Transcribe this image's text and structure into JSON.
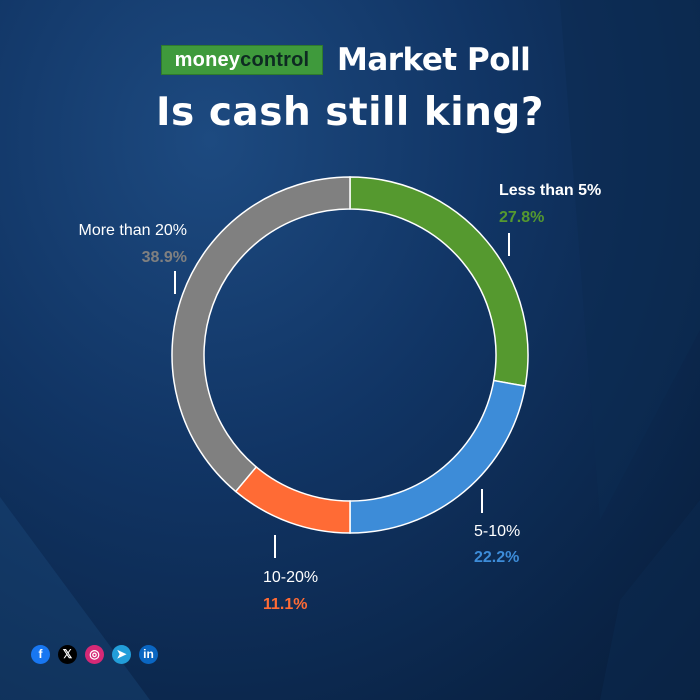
{
  "brand": {
    "logo_part1": "money",
    "logo_part2": "control",
    "poll_label": "Market Poll"
  },
  "title": "Is cash still king?",
  "chart_data": {
    "type": "pie",
    "variant": "donut",
    "title": "Is cash still king?",
    "slices": [
      {
        "label": "Less than 5%",
        "value": 27.8,
        "display": "27.8%",
        "color": "#55992f"
      },
      {
        "label": "5-10%",
        "value": 22.2,
        "display": "22.2%",
        "color": "#3d8cd8"
      },
      {
        "label": "10-20%",
        "value": 11.1,
        "display": "11.1%",
        "color": "#ff6b35"
      },
      {
        "label": "More than 20%",
        "value": 38.9,
        "display": "38.9%",
        "color": "#808080"
      }
    ]
  },
  "social": [
    {
      "name": "facebook-icon",
      "glyph": "f",
      "color": "#1877f2"
    },
    {
      "name": "x-icon",
      "glyph": "𝕏",
      "color": "#000000"
    },
    {
      "name": "instagram-icon",
      "glyph": "◎",
      "color": "#d62976"
    },
    {
      "name": "telegram-icon",
      "glyph": "➤",
      "color": "#229ed9"
    },
    {
      "name": "linkedin-icon",
      "glyph": "in",
      "color": "#0a66c2"
    }
  ]
}
